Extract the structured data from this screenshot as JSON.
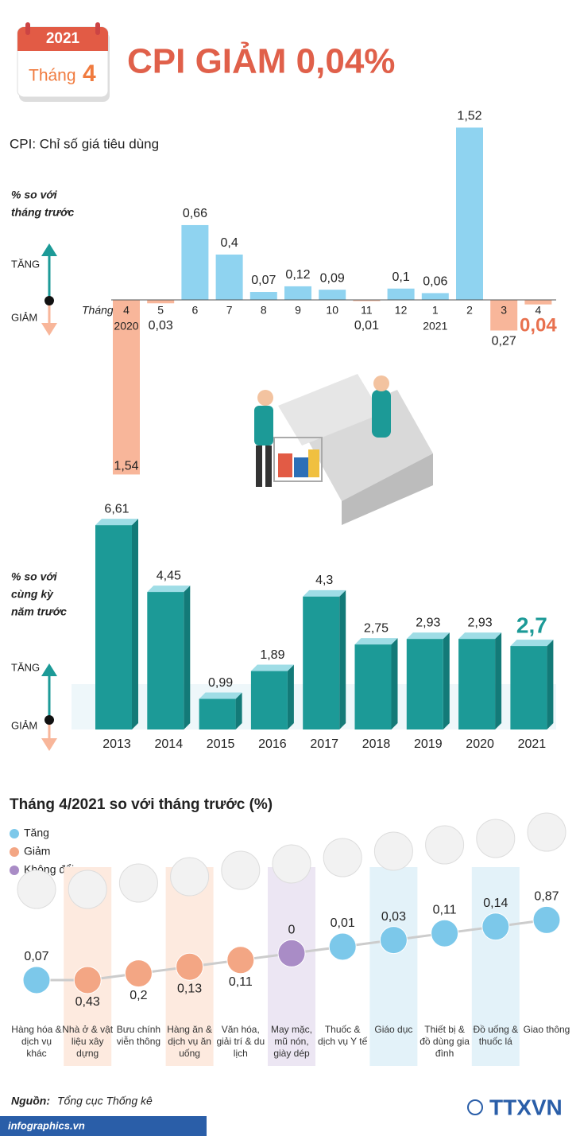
{
  "header": {
    "year": "2021",
    "month_word": "Tháng",
    "month": "4",
    "title": "CPI GIẢM 0,04%"
  },
  "subtitle": "CPI: Chỉ số giá tiêu dùng",
  "chart_data": [
    {
      "type": "bar",
      "axis_label": [
        "% so với",
        "tháng trước"
      ],
      "up_label": "TĂNG",
      "down_label": "GIẢM",
      "x_label": "Tháng",
      "categories": [
        "4",
        "5",
        "6",
        "7",
        "8",
        "9",
        "10",
        "11",
        "12",
        "1",
        "2",
        "3",
        "4"
      ],
      "year_labels": [
        "2020",
        null,
        null,
        null,
        null,
        null,
        null,
        null,
        null,
        "2021",
        null,
        null,
        null
      ],
      "values": [
        -1.54,
        -0.03,
        0.66,
        0.4,
        0.07,
        0.12,
        0.09,
        -0.01,
        0.1,
        0.06,
        1.52,
        -0.27,
        -0.04
      ],
      "value_labels": [
        "1,54",
        "0,03",
        "0,66",
        "0,4",
        "0,07",
        "0,12",
        "0,09",
        "0,01",
        "0,1",
        "0,06",
        "1,52",
        "0,27",
        "0,04"
      ],
      "colors": {
        "increase": "#8fd3f0",
        "decrease": "#f8b69a"
      },
      "ylim": [
        -1.6,
        1.6
      ]
    },
    {
      "type": "bar3d",
      "axis_label": [
        "% so với",
        "cùng kỳ",
        "năm trước"
      ],
      "up_label": "TĂNG",
      "down_label": "GIẢM",
      "categories": [
        "2013",
        "2014",
        "2015",
        "2016",
        "2017",
        "2018",
        "2019",
        "2020",
        "2021"
      ],
      "values": [
        6.61,
        4.45,
        0.99,
        1.89,
        4.3,
        2.75,
        2.93,
        2.93,
        2.7
      ],
      "value_labels": [
        "6,61",
        "4,45",
        "0,99",
        "1,89",
        "4,3",
        "2,75",
        "2,93",
        "2,93",
        "2,7"
      ],
      "color": "#1c9a97",
      "ylim": [
        0,
        7
      ]
    },
    {
      "type": "dot",
      "title": "Tháng 4/2021 so với tháng trước (%)",
      "legend": [
        {
          "name": "Tăng",
          "color": "#7cc8ea"
        },
        {
          "name": "Giảm",
          "color": "#f3a684"
        },
        {
          "name": "Không đổi",
          "color": "#a98cc6"
        }
      ],
      "categories": [
        "Hàng hóa & dịch vụ khác",
        "Nhà ở & vật liệu xây dựng",
        "Bưu chính viễn thông",
        "Hàng ăn & dịch vụ ăn uống",
        "Văn hóa, giải trí & du lịch",
        "May mặc, mũ nón, giày dép",
        "Thuốc & dịch vụ Y tế",
        "Giáo dục",
        "Thiết bị & đồ dùng gia đình",
        "Đồ uống & thuốc lá",
        "Giao thông"
      ],
      "values": [
        0.07,
        -0.43,
        -0.2,
        -0.13,
        -0.11,
        0,
        0.01,
        0.03,
        0.11,
        0.14,
        0.87
      ],
      "value_labels": [
        "0,07",
        "0,43",
        "0,2",
        "0,13",
        "0,11",
        "0",
        "0,01",
        "0,03",
        "0,11",
        "0,14",
        "0,87"
      ]
    }
  ],
  "footer": {
    "source_label": "Nguồn:",
    "source": "Tổng cục Thống kê",
    "site": "infographics.vn",
    "logo": "TTXVN"
  }
}
